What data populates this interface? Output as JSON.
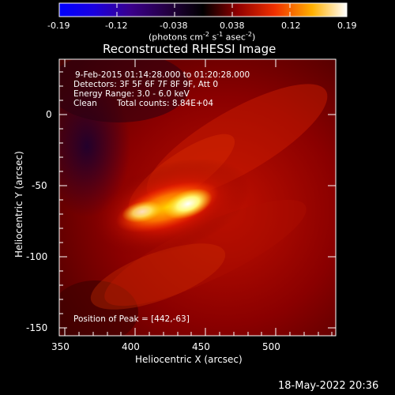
{
  "colorbar": {
    "tick_labels": [
      "-0.19",
      "-0.12",
      "-0.038",
      "0.038",
      "0.12",
      "0.19"
    ],
    "units_prefix": "(photons cm",
    "units_exp1": "-2",
    "units_mid1": " s",
    "units_exp2": "-1",
    "units_mid2": " asec",
    "units_exp3": "-2",
    "units_suffix": ")"
  },
  "title": "Reconstructed RHESSI Image",
  "annotations": {
    "time_range": "9-Feb-2015 01:14:28.000 to 01:20:28.000",
    "detectors": "Detectors: 3F 5F 6F 7F 8F 9F, Att 0",
    "energy": "Energy Range: 3.0 - 6.0 keV",
    "method": "Clean",
    "counts": "Total counts: 8.84E+04",
    "peak": "Position of Peak = [442,-63]"
  },
  "x_axis": {
    "label": "Heliocentric X (arcsec)",
    "tick_labels": [
      "350",
      "400",
      "450",
      "500"
    ]
  },
  "y_axis": {
    "label": "Heliocentric Y (arcsec)",
    "tick_labels": [
      "0",
      "-50",
      "-100",
      "-150"
    ]
  },
  "footer": {
    "date": "18-May-2022 20:36"
  },
  "colors": {
    "background": "#000000",
    "foreground": "#ffffff"
  }
}
